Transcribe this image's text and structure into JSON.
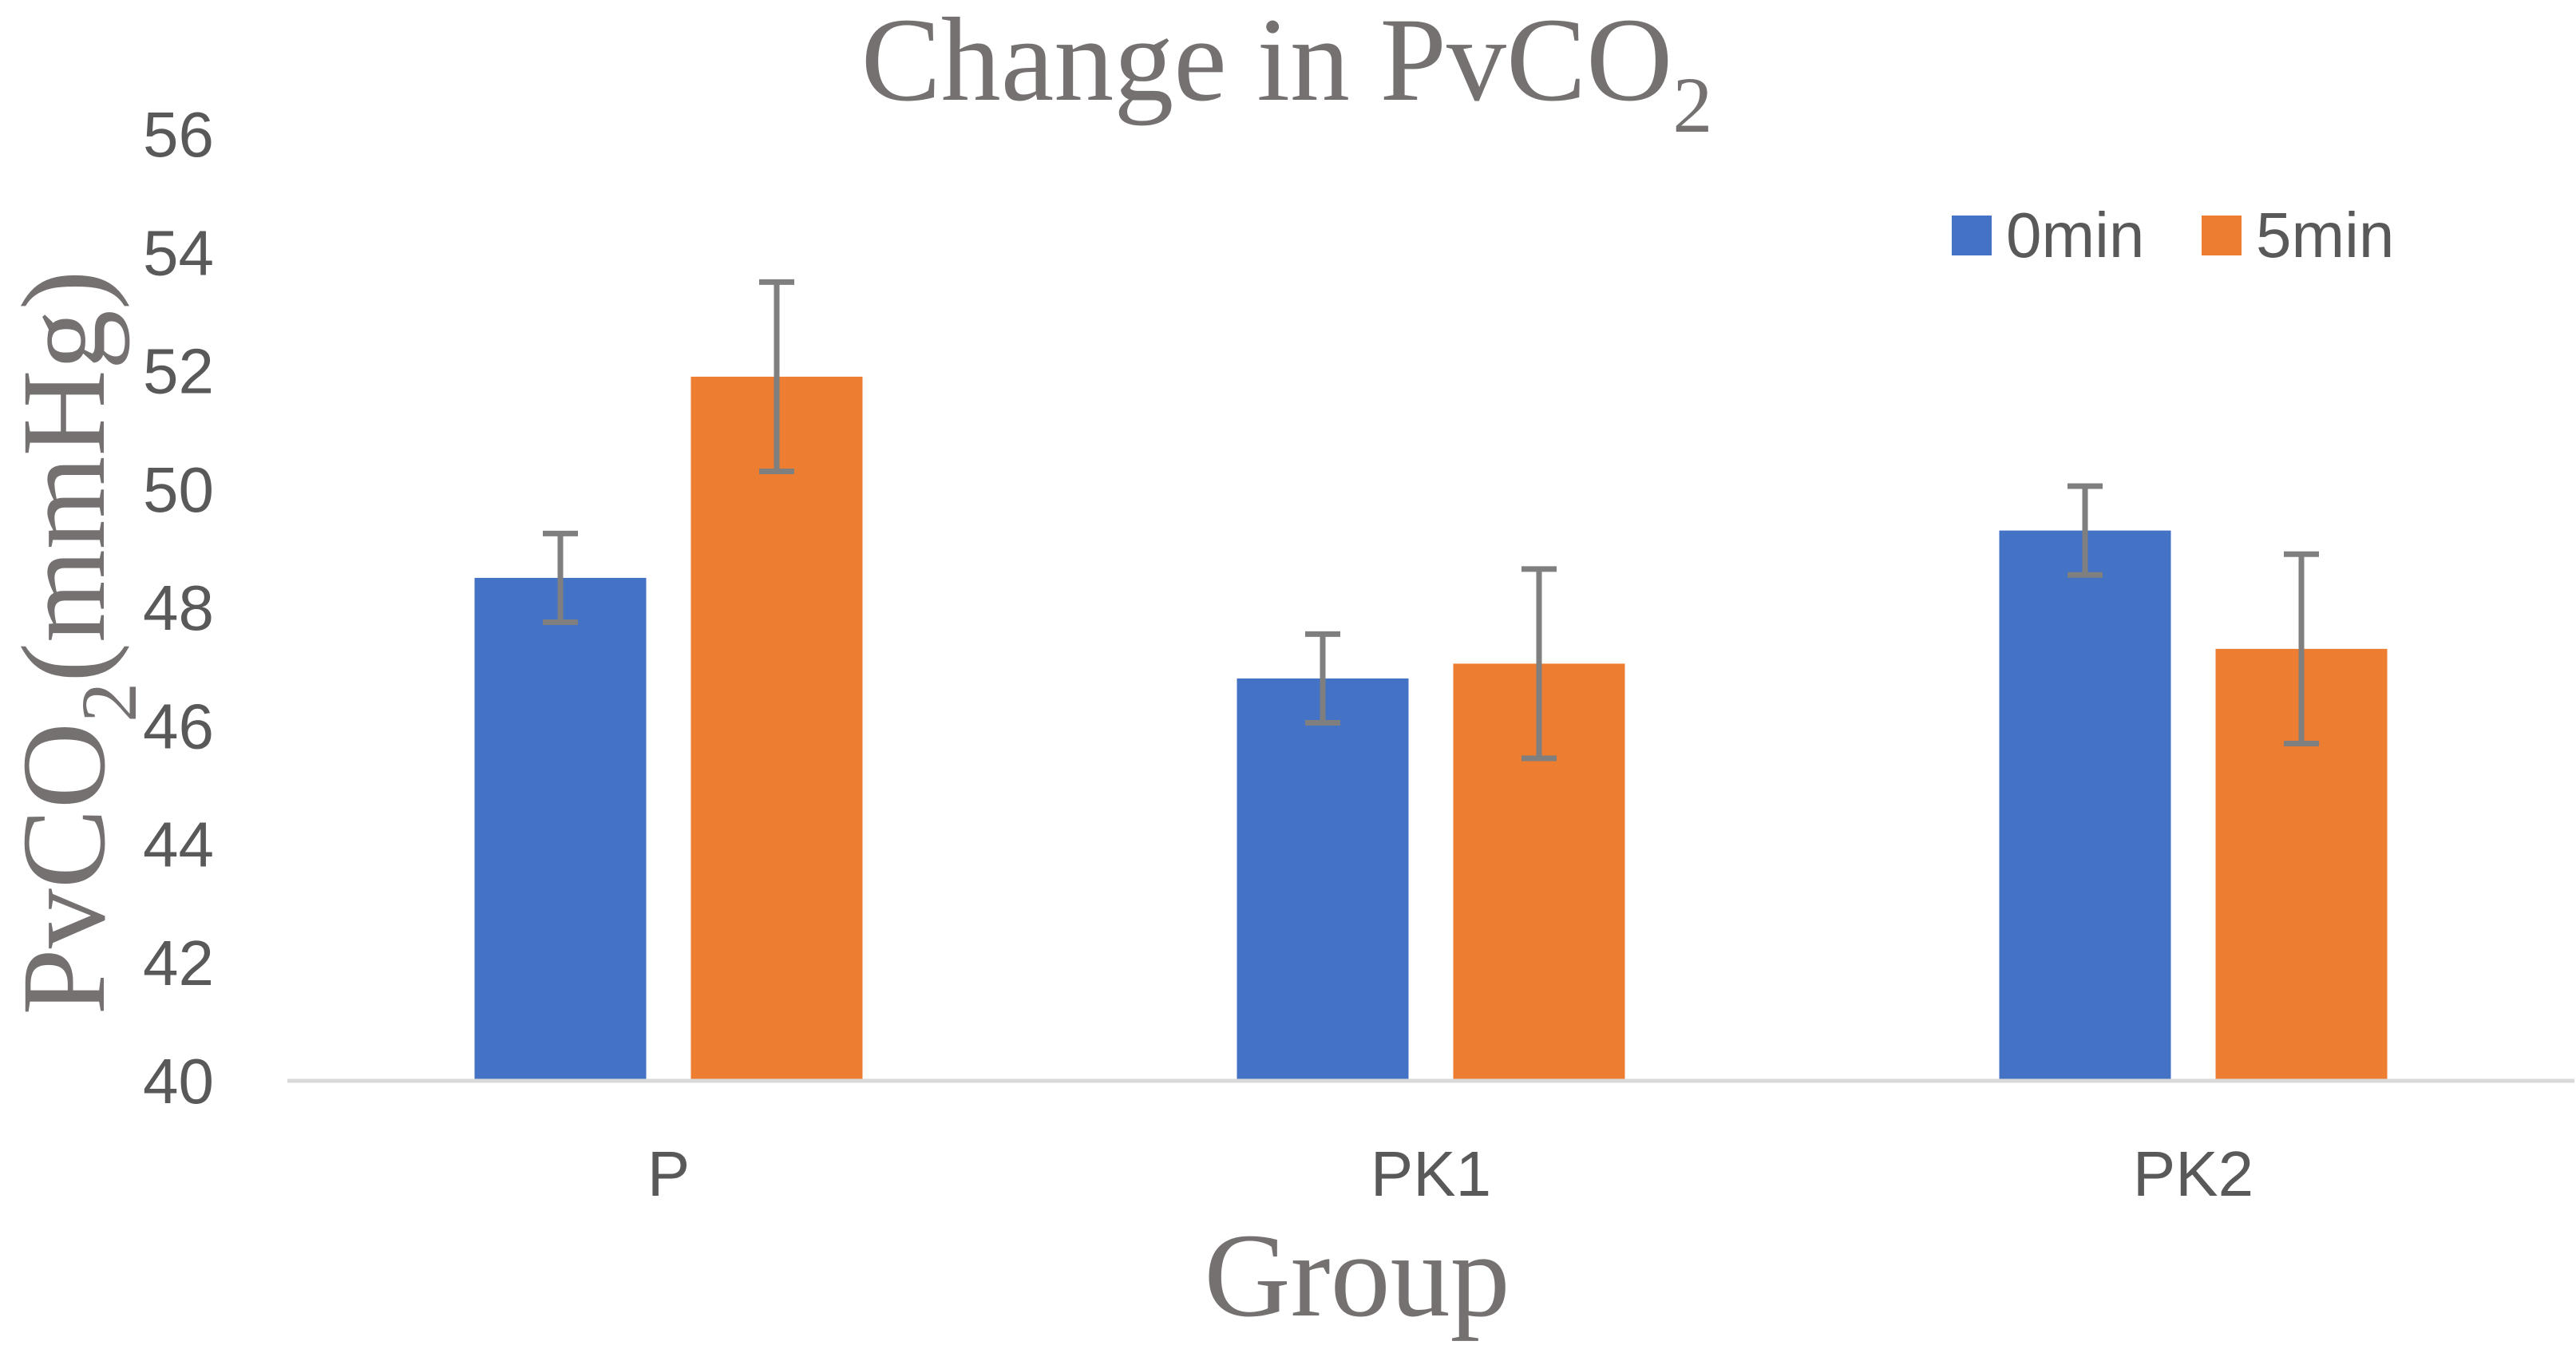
{
  "chart_data": {
    "type": "bar",
    "title_main": "Change in PvCO",
    "title_sub": "2",
    "ylabel_main": "PvCO",
    "ylabel_sub": "2",
    "ylabel_rest": "(mmHg)",
    "xlabel": "Group",
    "categories": [
      "P",
      "PK1",
      "PK2"
    ],
    "series": [
      {
        "name": "0min",
        "color": "#4472C4",
        "values": [
          48.5,
          46.8,
          49.3
        ],
        "errors": [
          0.75,
          0.75,
          0.75
        ]
      },
      {
        "name": "5min",
        "color": "#ED7D31",
        "values": [
          51.9,
          47.05,
          47.3
        ],
        "errors": [
          1.6,
          1.6,
          1.6
        ]
      }
    ],
    "ylim": [
      40,
      56
    ],
    "yticks": [
      "40",
      "42",
      "44",
      "46",
      "48",
      "50",
      "52",
      "54",
      "56"
    ],
    "grid": false,
    "legend_position": "top-right",
    "error_bar_color": "#7F7F7F"
  }
}
